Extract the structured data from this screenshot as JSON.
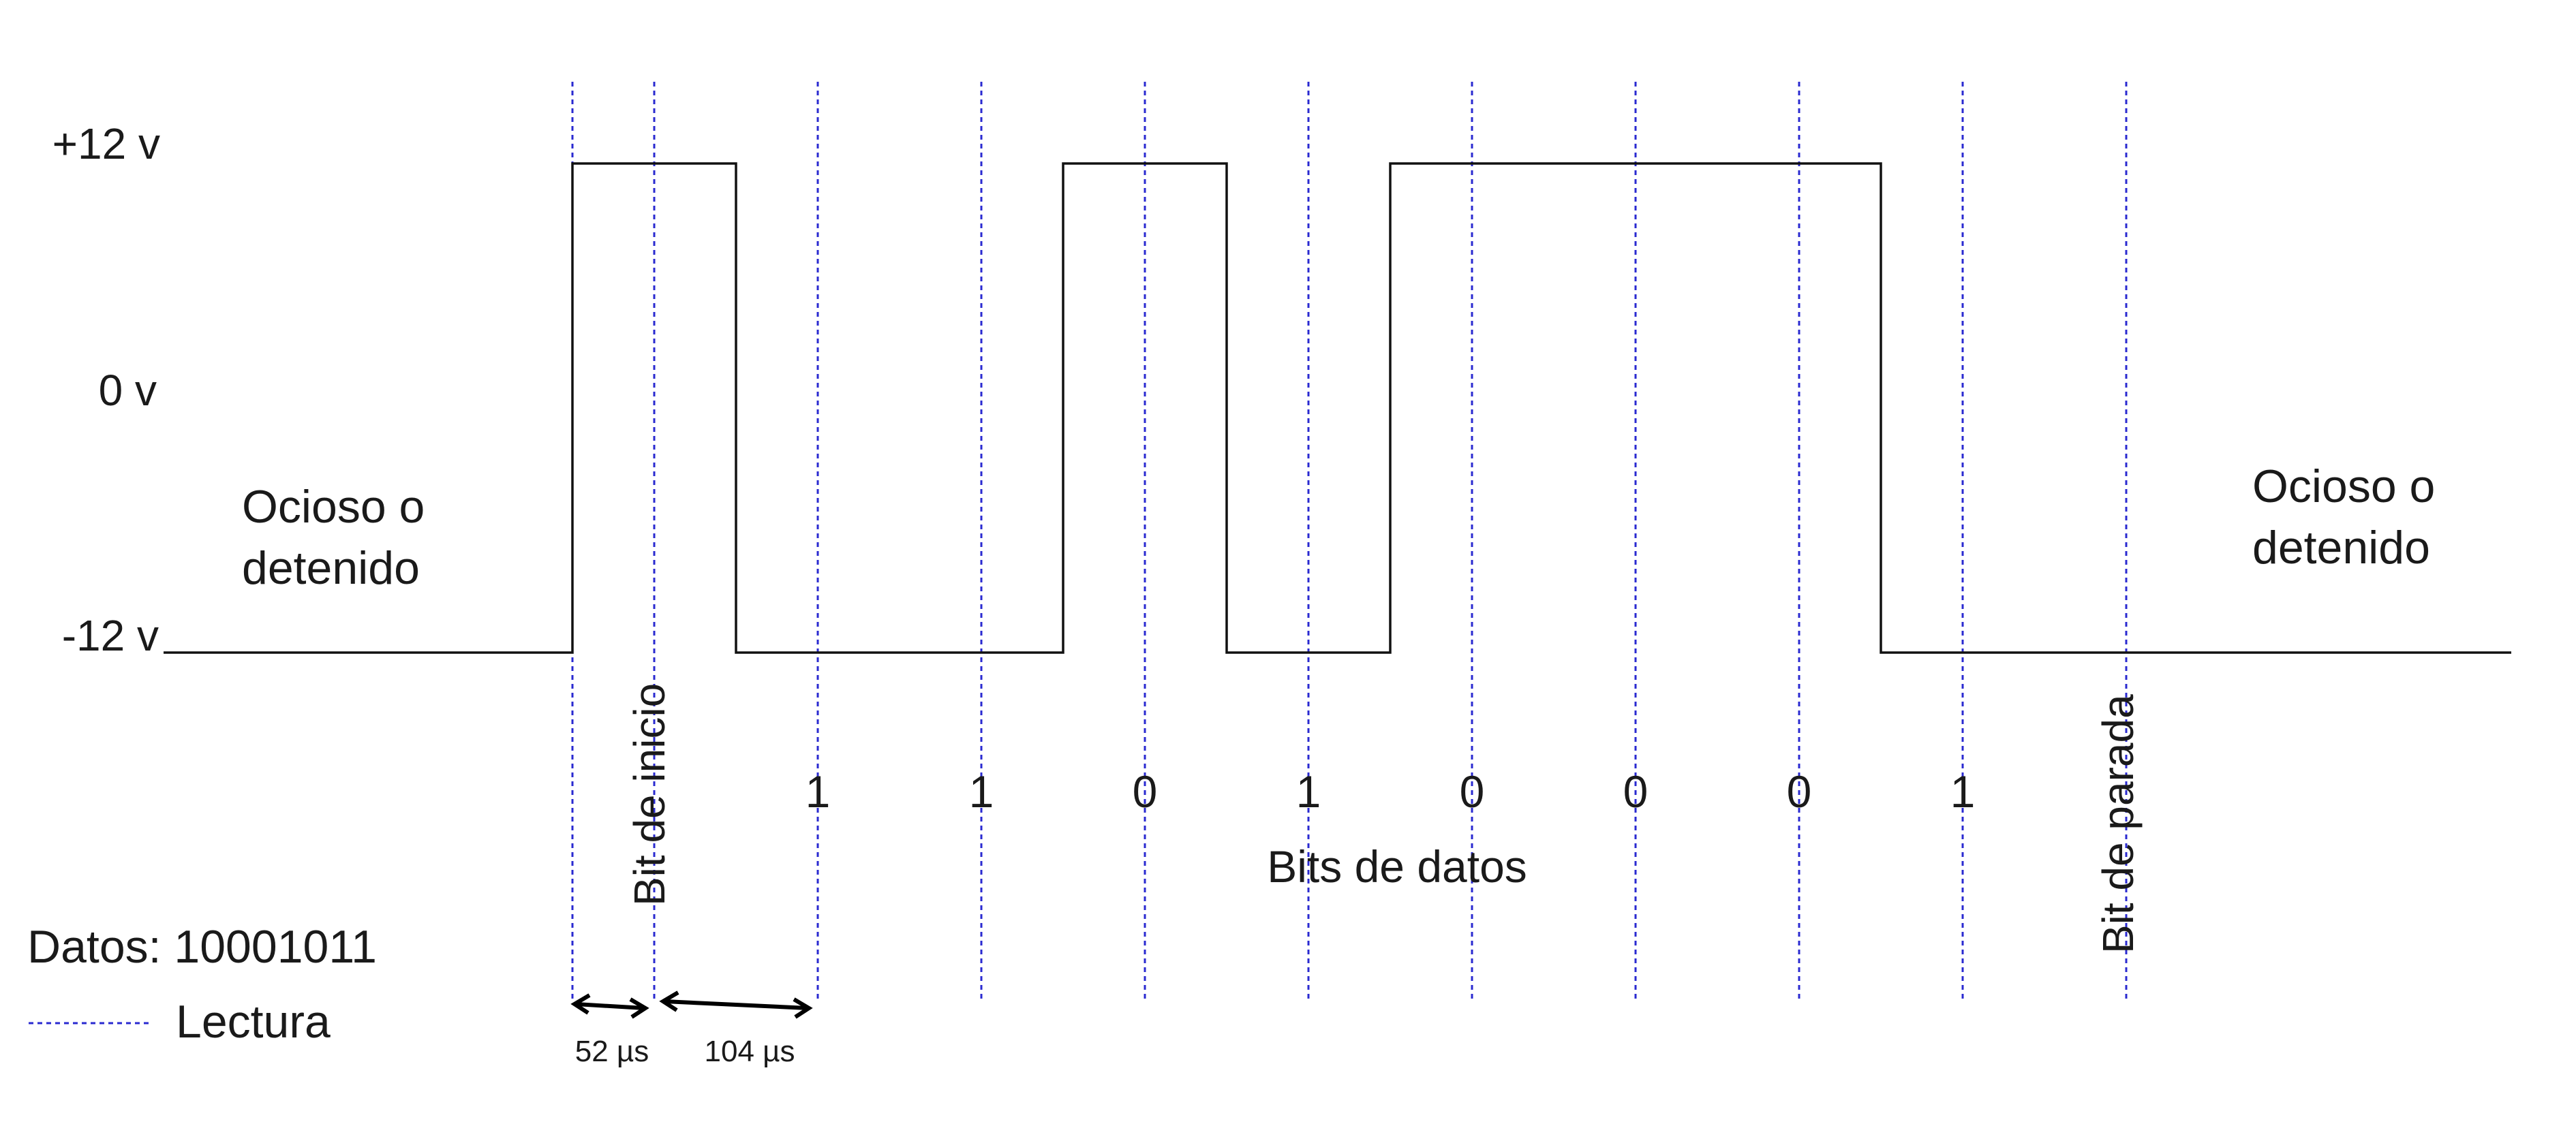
{
  "voltage_levels": {
    "high": "+12 v",
    "zero": "0 v",
    "low": "-12 v"
  },
  "idle_label_left": [
    "Ocioso o",
    "detenido"
  ],
  "idle_label_right": [
    "Ocioso o",
    "detenido"
  ],
  "start_bit_label": "Bit de inicio",
  "stop_bit_label": "Bit de parada",
  "data_bits_label": "Bits de datos",
  "bit_values": [
    "1",
    "1",
    "0",
    "1",
    "0",
    "0",
    "0",
    "1"
  ],
  "data_legend": "Datos: 10001011",
  "read_legend": "Lectura",
  "half_bit_time": "52 µs",
  "bit_time": "104 µs",
  "signal_levels": [
    "low",
    "high",
    "low",
    "low",
    "high",
    "low",
    "high",
    "high",
    "high",
    "low",
    "low"
  ],
  "colors": {
    "signal": "#111111",
    "read_line": "#2a2ad0",
    "text": "#1a1a1a"
  }
}
